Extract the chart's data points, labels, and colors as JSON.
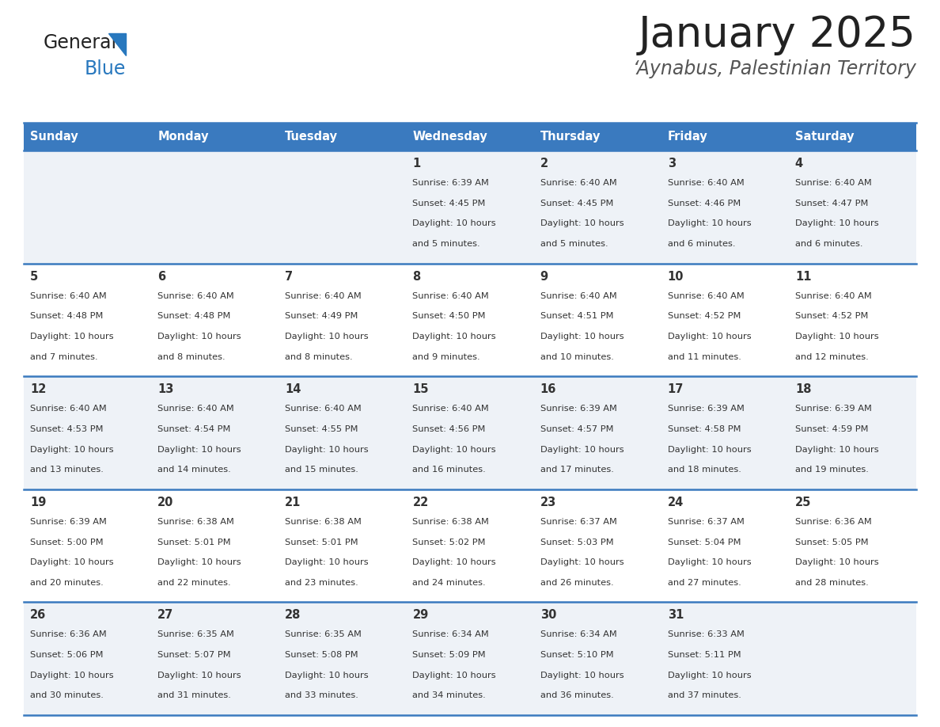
{
  "title": "January 2025",
  "subtitle": "‘Aynabus, Palestinian Territory",
  "days_of_week": [
    "Sunday",
    "Monday",
    "Tuesday",
    "Wednesday",
    "Thursday",
    "Friday",
    "Saturday"
  ],
  "header_bg": "#3a7abf",
  "header_text": "#ffffff",
  "row_bg_odd": "#eef2f7",
  "row_bg_even": "#ffffff",
  "separator_color": "#3a7abf",
  "text_color": "#333333",
  "logo_general_color": "#222222",
  "logo_blue_color": "#2878be",
  "logo_triangle_color": "#2878be",
  "title_color": "#222222",
  "subtitle_color": "#555555",
  "calendar_data": [
    [
      {
        "day": "",
        "sunrise": "",
        "sunset": "",
        "daylight_l1": "",
        "daylight_l2": ""
      },
      {
        "day": "",
        "sunrise": "",
        "sunset": "",
        "daylight_l1": "",
        "daylight_l2": ""
      },
      {
        "day": "",
        "sunrise": "",
        "sunset": "",
        "daylight_l1": "",
        "daylight_l2": ""
      },
      {
        "day": "1",
        "sunrise": "Sunrise: 6:39 AM",
        "sunset": "Sunset: 4:45 PM",
        "daylight_l1": "Daylight: 10 hours",
        "daylight_l2": "and 5 minutes."
      },
      {
        "day": "2",
        "sunrise": "Sunrise: 6:40 AM",
        "sunset": "Sunset: 4:45 PM",
        "daylight_l1": "Daylight: 10 hours",
        "daylight_l2": "and 5 minutes."
      },
      {
        "day": "3",
        "sunrise": "Sunrise: 6:40 AM",
        "sunset": "Sunset: 4:46 PM",
        "daylight_l1": "Daylight: 10 hours",
        "daylight_l2": "and 6 minutes."
      },
      {
        "day": "4",
        "sunrise": "Sunrise: 6:40 AM",
        "sunset": "Sunset: 4:47 PM",
        "daylight_l1": "Daylight: 10 hours",
        "daylight_l2": "and 6 minutes."
      }
    ],
    [
      {
        "day": "5",
        "sunrise": "Sunrise: 6:40 AM",
        "sunset": "Sunset: 4:48 PM",
        "daylight_l1": "Daylight: 10 hours",
        "daylight_l2": "and 7 minutes."
      },
      {
        "day": "6",
        "sunrise": "Sunrise: 6:40 AM",
        "sunset": "Sunset: 4:48 PM",
        "daylight_l1": "Daylight: 10 hours",
        "daylight_l2": "and 8 minutes."
      },
      {
        "day": "7",
        "sunrise": "Sunrise: 6:40 AM",
        "sunset": "Sunset: 4:49 PM",
        "daylight_l1": "Daylight: 10 hours",
        "daylight_l2": "and 8 minutes."
      },
      {
        "day": "8",
        "sunrise": "Sunrise: 6:40 AM",
        "sunset": "Sunset: 4:50 PM",
        "daylight_l1": "Daylight: 10 hours",
        "daylight_l2": "and 9 minutes."
      },
      {
        "day": "9",
        "sunrise": "Sunrise: 6:40 AM",
        "sunset": "Sunset: 4:51 PM",
        "daylight_l1": "Daylight: 10 hours",
        "daylight_l2": "and 10 minutes."
      },
      {
        "day": "10",
        "sunrise": "Sunrise: 6:40 AM",
        "sunset": "Sunset: 4:52 PM",
        "daylight_l1": "Daylight: 10 hours",
        "daylight_l2": "and 11 minutes."
      },
      {
        "day": "11",
        "sunrise": "Sunrise: 6:40 AM",
        "sunset": "Sunset: 4:52 PM",
        "daylight_l1": "Daylight: 10 hours",
        "daylight_l2": "and 12 minutes."
      }
    ],
    [
      {
        "day": "12",
        "sunrise": "Sunrise: 6:40 AM",
        "sunset": "Sunset: 4:53 PM",
        "daylight_l1": "Daylight: 10 hours",
        "daylight_l2": "and 13 minutes."
      },
      {
        "day": "13",
        "sunrise": "Sunrise: 6:40 AM",
        "sunset": "Sunset: 4:54 PM",
        "daylight_l1": "Daylight: 10 hours",
        "daylight_l2": "and 14 minutes."
      },
      {
        "day": "14",
        "sunrise": "Sunrise: 6:40 AM",
        "sunset": "Sunset: 4:55 PM",
        "daylight_l1": "Daylight: 10 hours",
        "daylight_l2": "and 15 minutes."
      },
      {
        "day": "15",
        "sunrise": "Sunrise: 6:40 AM",
        "sunset": "Sunset: 4:56 PM",
        "daylight_l1": "Daylight: 10 hours",
        "daylight_l2": "and 16 minutes."
      },
      {
        "day": "16",
        "sunrise": "Sunrise: 6:39 AM",
        "sunset": "Sunset: 4:57 PM",
        "daylight_l1": "Daylight: 10 hours",
        "daylight_l2": "and 17 minutes."
      },
      {
        "day": "17",
        "sunrise": "Sunrise: 6:39 AM",
        "sunset": "Sunset: 4:58 PM",
        "daylight_l1": "Daylight: 10 hours",
        "daylight_l2": "and 18 minutes."
      },
      {
        "day": "18",
        "sunrise": "Sunrise: 6:39 AM",
        "sunset": "Sunset: 4:59 PM",
        "daylight_l1": "Daylight: 10 hours",
        "daylight_l2": "and 19 minutes."
      }
    ],
    [
      {
        "day": "19",
        "sunrise": "Sunrise: 6:39 AM",
        "sunset": "Sunset: 5:00 PM",
        "daylight_l1": "Daylight: 10 hours",
        "daylight_l2": "and 20 minutes."
      },
      {
        "day": "20",
        "sunrise": "Sunrise: 6:38 AM",
        "sunset": "Sunset: 5:01 PM",
        "daylight_l1": "Daylight: 10 hours",
        "daylight_l2": "and 22 minutes."
      },
      {
        "day": "21",
        "sunrise": "Sunrise: 6:38 AM",
        "sunset": "Sunset: 5:01 PM",
        "daylight_l1": "Daylight: 10 hours",
        "daylight_l2": "and 23 minutes."
      },
      {
        "day": "22",
        "sunrise": "Sunrise: 6:38 AM",
        "sunset": "Sunset: 5:02 PM",
        "daylight_l1": "Daylight: 10 hours",
        "daylight_l2": "and 24 minutes."
      },
      {
        "day": "23",
        "sunrise": "Sunrise: 6:37 AM",
        "sunset": "Sunset: 5:03 PM",
        "daylight_l1": "Daylight: 10 hours",
        "daylight_l2": "and 26 minutes."
      },
      {
        "day": "24",
        "sunrise": "Sunrise: 6:37 AM",
        "sunset": "Sunset: 5:04 PM",
        "daylight_l1": "Daylight: 10 hours",
        "daylight_l2": "and 27 minutes."
      },
      {
        "day": "25",
        "sunrise": "Sunrise: 6:36 AM",
        "sunset": "Sunset: 5:05 PM",
        "daylight_l1": "Daylight: 10 hours",
        "daylight_l2": "and 28 minutes."
      }
    ],
    [
      {
        "day": "26",
        "sunrise": "Sunrise: 6:36 AM",
        "sunset": "Sunset: 5:06 PM",
        "daylight_l1": "Daylight: 10 hours",
        "daylight_l2": "and 30 minutes."
      },
      {
        "day": "27",
        "sunrise": "Sunrise: 6:35 AM",
        "sunset": "Sunset: 5:07 PM",
        "daylight_l1": "Daylight: 10 hours",
        "daylight_l2": "and 31 minutes."
      },
      {
        "day": "28",
        "sunrise": "Sunrise: 6:35 AM",
        "sunset": "Sunset: 5:08 PM",
        "daylight_l1": "Daylight: 10 hours",
        "daylight_l2": "and 33 minutes."
      },
      {
        "day": "29",
        "sunrise": "Sunrise: 6:34 AM",
        "sunset": "Sunset: 5:09 PM",
        "daylight_l1": "Daylight: 10 hours",
        "daylight_l2": "and 34 minutes."
      },
      {
        "day": "30",
        "sunrise": "Sunrise: 6:34 AM",
        "sunset": "Sunset: 5:10 PM",
        "daylight_l1": "Daylight: 10 hours",
        "daylight_l2": "and 36 minutes."
      },
      {
        "day": "31",
        "sunrise": "Sunrise: 6:33 AM",
        "sunset": "Sunset: 5:11 PM",
        "daylight_l1": "Daylight: 10 hours",
        "daylight_l2": "and 37 minutes."
      },
      {
        "day": "",
        "sunrise": "",
        "sunset": "",
        "daylight_l1": "",
        "daylight_l2": ""
      }
    ]
  ]
}
